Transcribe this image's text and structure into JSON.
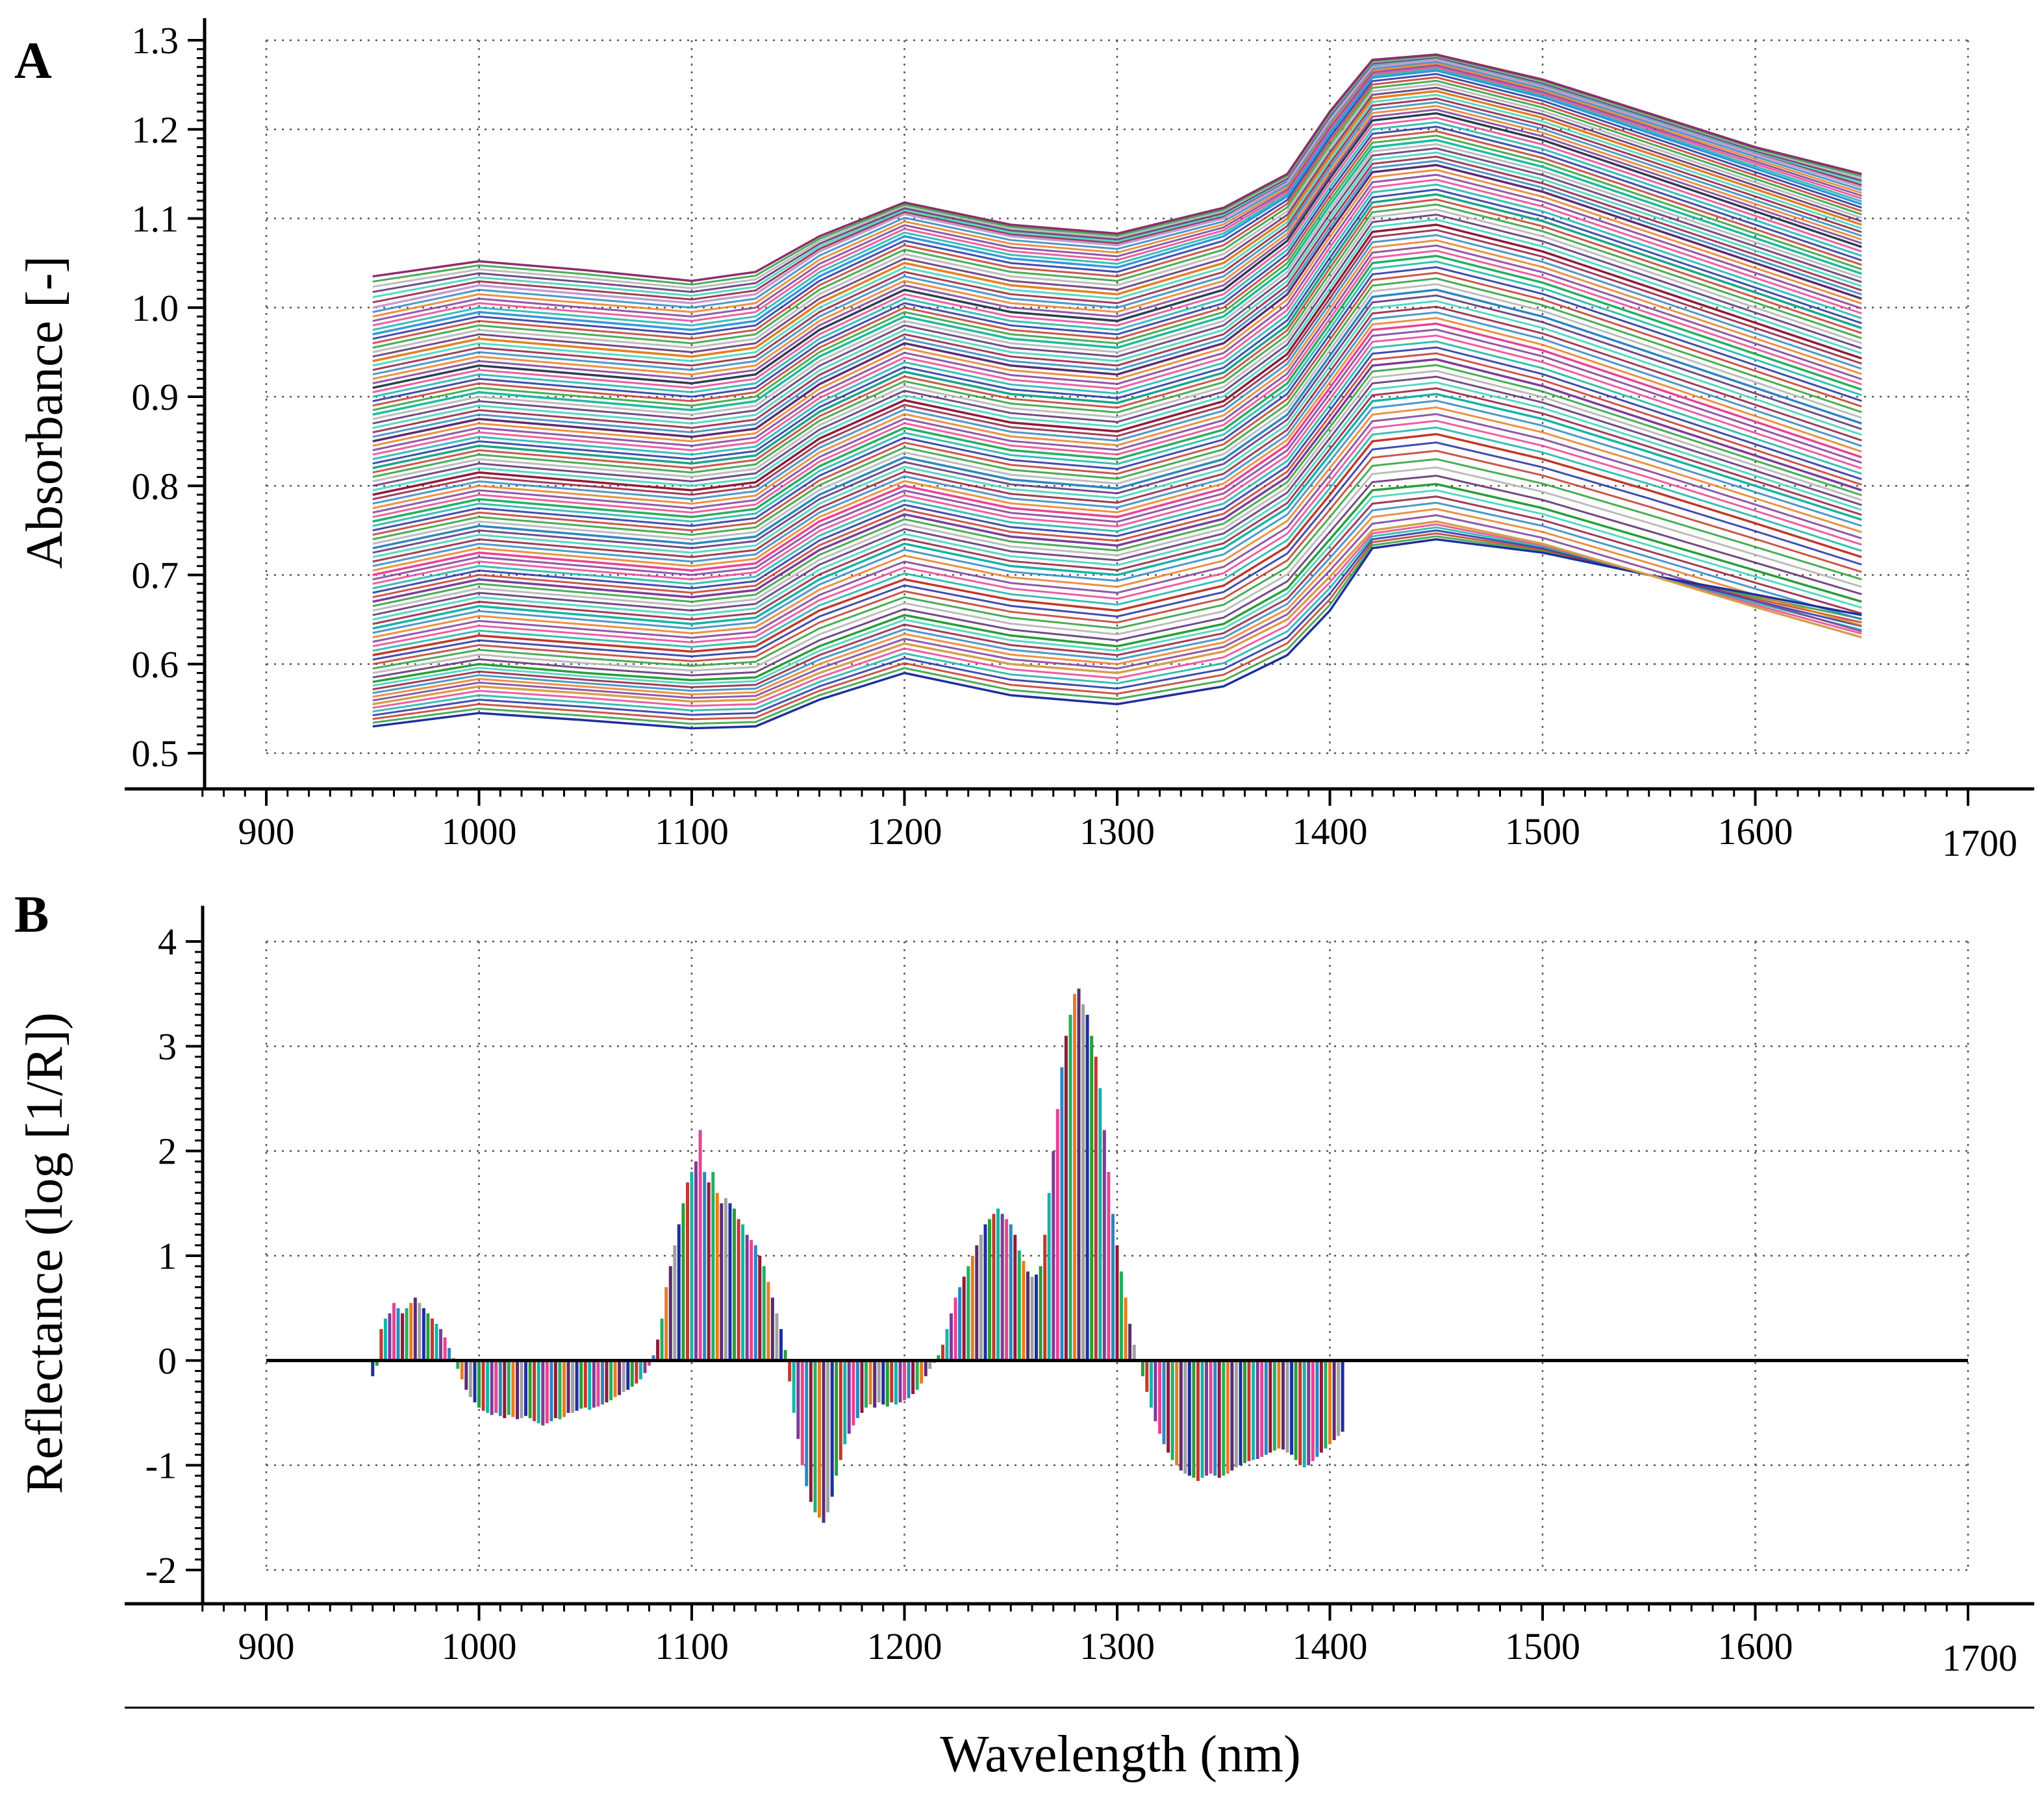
{
  "figure": {
    "xlabel": "Wavelength (nm)"
  },
  "chart_data": [
    {
      "panel": "A",
      "type": "line",
      "ylabel": "Absorbance [-]",
      "xlim": [
        900,
        1700
      ],
      "ylim": [
        0.5,
        1.3
      ],
      "xticks": [
        "900",
        "1000",
        "1100",
        "1200",
        "1300",
        "1400",
        "1500",
        "1600",
        "1700"
      ],
      "yticks": [
        "0.5",
        "0.6",
        "0.7",
        "0.8",
        "0.9",
        "1.0",
        "1.1",
        "1.2",
        "1.3"
      ],
      "grid": true,
      "x": [
        950,
        1000,
        1050,
        1100,
        1130,
        1160,
        1200,
        1250,
        1300,
        1350,
        1380,
        1400,
        1420,
        1450,
        1500,
        1550,
        1600,
        1650
      ],
      "series": [
        {
          "values": [
            0.53,
            0.545,
            0.537,
            0.528,
            0.53,
            0.56,
            0.59,
            0.565,
            0.555,
            0.575,
            0.61,
            0.66,
            0.73,
            0.74,
            0.725,
            0.7,
            0.678,
            0.655
          ]
        },
        {
          "values": [
            0.555,
            0.575,
            0.567,
            0.558,
            0.56,
            0.59,
            0.623,
            0.6,
            0.59,
            0.614,
            0.65,
            0.698,
            0.75,
            0.76,
            0.735,
            0.7,
            0.664,
            0.63
          ]
        },
        {
          "values": [
            0.58,
            0.6,
            0.59,
            0.582,
            0.585,
            0.62,
            0.655,
            0.632,
            0.62,
            0.645,
            0.685,
            0.74,
            0.795,
            0.802,
            0.775,
            0.74,
            0.705,
            0.67
          ]
        },
        {
          "values": [
            0.61,
            0.632,
            0.623,
            0.614,
            0.62,
            0.66,
            0.695,
            0.672,
            0.66,
            0.688,
            0.732,
            0.79,
            0.85,
            0.858,
            0.83,
            0.795,
            0.758,
            0.72
          ]
        },
        {
          "values": [
            0.64,
            0.665,
            0.655,
            0.645,
            0.652,
            0.695,
            0.735,
            0.71,
            0.7,
            0.73,
            0.775,
            0.835,
            0.895,
            0.903,
            0.875,
            0.838,
            0.8,
            0.762
          ]
        },
        {
          "values": [
            0.67,
            0.695,
            0.685,
            0.675,
            0.683,
            0.728,
            0.768,
            0.743,
            0.733,
            0.763,
            0.81,
            0.872,
            0.935,
            0.942,
            0.912,
            0.873,
            0.834,
            0.795
          ]
        },
        {
          "values": [
            0.7,
            0.725,
            0.715,
            0.705,
            0.713,
            0.76,
            0.8,
            0.775,
            0.765,
            0.797,
            0.846,
            0.91,
            0.975,
            0.982,
            0.952,
            0.912,
            0.872,
            0.832
          ]
        },
        {
          "values": [
            0.73,
            0.755,
            0.745,
            0.735,
            0.743,
            0.79,
            0.832,
            0.807,
            0.797,
            0.83,
            0.88,
            0.946,
            1.012,
            1.02,
            0.99,
            0.95,
            0.91,
            0.87
          ]
        },
        {
          "values": [
            0.76,
            0.785,
            0.775,
            0.765,
            0.774,
            0.822,
            0.865,
            0.84,
            0.83,
            0.863,
            0.915,
            0.982,
            1.05,
            1.058,
            1.028,
            0.988,
            0.948,
            0.908
          ]
        },
        {
          "values": [
            0.79,
            0.815,
            0.805,
            0.795,
            0.804,
            0.853,
            0.896,
            0.871,
            0.861,
            0.895,
            0.948,
            1.016,
            1.085,
            1.093,
            1.063,
            1.023,
            0.983,
            0.943
          ]
        },
        {
          "values": [
            0.82,
            0.845,
            0.835,
            0.825,
            0.834,
            0.883,
            0.928,
            0.903,
            0.893,
            0.927,
            0.98,
            1.05,
            1.118,
            1.127,
            1.097,
            1.057,
            1.017,
            0.977
          ]
        },
        {
          "values": [
            0.85,
            0.875,
            0.865,
            0.855,
            0.864,
            0.914,
            0.96,
            0.935,
            0.925,
            0.96,
            1.015,
            1.085,
            1.152,
            1.16,
            1.13,
            1.09,
            1.05,
            1.01
          ]
        },
        {
          "values": [
            0.88,
            0.905,
            0.895,
            0.885,
            0.895,
            0.945,
            0.99,
            0.965,
            0.955,
            0.99,
            1.045,
            1.115,
            1.18,
            1.188,
            1.158,
            1.118,
            1.078,
            1.038
          ]
        },
        {
          "values": [
            0.91,
            0.935,
            0.925,
            0.915,
            0.925,
            0.975,
            1.02,
            0.995,
            0.985,
            1.02,
            1.075,
            1.145,
            1.21,
            1.218,
            1.188,
            1.148,
            1.108,
            1.068
          ]
        },
        {
          "values": [
            0.94,
            0.965,
            0.955,
            0.945,
            0.955,
            1.005,
            1.05,
            1.025,
            1.015,
            1.05,
            1.1,
            1.17,
            1.235,
            1.243,
            1.213,
            1.173,
            1.133,
            1.093
          ]
        },
        {
          "values": [
            0.97,
            0.995,
            0.985,
            0.975,
            0.985,
            1.035,
            1.08,
            1.055,
            1.045,
            1.08,
            1.125,
            1.195,
            1.258,
            1.266,
            1.236,
            1.196,
            1.156,
            1.116
          ]
        },
        {
          "values": [
            1.0,
            1.025,
            1.015,
            1.005,
            1.015,
            1.063,
            1.105,
            1.08,
            1.07,
            1.1,
            1.14,
            1.21,
            1.27,
            1.278,
            1.248,
            1.21,
            1.172,
            1.135
          ]
        },
        {
          "values": [
            1.035,
            1.052,
            1.042,
            1.03,
            1.04,
            1.08,
            1.118,
            1.093,
            1.083,
            1.112,
            1.15,
            1.22,
            1.278,
            1.284,
            1.256,
            1.218,
            1.18,
            1.15
          ]
        }
      ],
      "colors": [
        "#1f2f9e",
        "#d4a04a",
        "#2a9d3a",
        "#c0392b",
        "#16b3a8",
        "#7d3c98",
        "#e84393",
        "#2e86c1",
        "#27ae60",
        "#8e1b3a",
        "#17a589",
        "#5b2c6f",
        "#1abc9c",
        "#2c3e50",
        "#e67e22",
        "#3498db",
        "#c39bd3",
        "#8e2d6e"
      ]
    },
    {
      "panel": "B",
      "type": "bar",
      "ylabel": "Reflectance (log [1/R])",
      "xlim": [
        900,
        1700
      ],
      "ylim": [
        -2,
        4
      ],
      "xticks": [
        "900",
        "1000",
        "1100",
        "1200",
        "1300",
        "1400",
        "1500",
        "1600",
        "1700"
      ],
      "yticks": [
        "-2",
        "-1",
        "0",
        "1",
        "2",
        "3",
        "4"
      ],
      "grid": true,
      "x_start": 950,
      "x_step": 2,
      "values": [
        -0.15,
        -0.05,
        0.3,
        0.4,
        0.45,
        0.55,
        0.5,
        0.45,
        0.5,
        0.55,
        0.6,
        0.55,
        0.5,
        0.45,
        0.4,
        0.35,
        0.3,
        0.22,
        0.12,
        0.02,
        -0.08,
        -0.18,
        -0.28,
        -0.35,
        -0.4,
        -0.45,
        -0.48,
        -0.5,
        -0.52,
        -0.5,
        -0.53,
        -0.55,
        -0.52,
        -0.54,
        -0.56,
        -0.55,
        -0.53,
        -0.55,
        -0.58,
        -0.6,
        -0.62,
        -0.6,
        -0.58,
        -0.55,
        -0.56,
        -0.54,
        -0.5,
        -0.5,
        -0.48,
        -0.46,
        -0.45,
        -0.47,
        -0.45,
        -0.44,
        -0.42,
        -0.4,
        -0.38,
        -0.35,
        -0.33,
        -0.3,
        -0.28,
        -0.25,
        -0.22,
        -0.18,
        -0.12,
        -0.05,
        0.05,
        0.2,
        0.4,
        0.7,
        0.9,
        1.1,
        1.3,
        1.5,
        1.7,
        1.8,
        1.9,
        2.2,
        1.8,
        1.7,
        1.8,
        1.6,
        1.5,
        1.55,
        1.5,
        1.45,
        1.35,
        1.3,
        1.2,
        1.15,
        1.1,
        1.0,
        0.9,
        0.75,
        0.6,
        0.45,
        0.3,
        0.1,
        -0.2,
        -0.5,
        -0.75,
        -1.0,
        -1.2,
        -1.35,
        -1.45,
        -1.5,
        -1.55,
        -1.45,
        -1.3,
        -1.1,
        -0.95,
        -0.8,
        -0.7,
        -0.62,
        -0.55,
        -0.5,
        -0.45,
        -0.42,
        -0.45,
        -0.4,
        -0.42,
        -0.44,
        -0.4,
        -0.42,
        -0.4,
        -0.38,
        -0.36,
        -0.32,
        -0.28,
        -0.22,
        -0.15,
        -0.08,
        -0.02,
        0.05,
        0.15,
        0.3,
        0.45,
        0.6,
        0.7,
        0.8,
        0.9,
        1.0,
        1.1,
        1.2,
        1.3,
        1.35,
        1.4,
        1.45,
        1.4,
        1.35,
        1.3,
        1.2,
        1.05,
        0.95,
        0.85,
        0.8,
        0.82,
        0.9,
        1.2,
        1.6,
        2.0,
        2.4,
        2.8,
        3.1,
        3.3,
        3.5,
        3.55,
        3.4,
        3.3,
        3.1,
        2.9,
        2.6,
        2.2,
        1.8,
        1.4,
        1.1,
        0.85,
        0.6,
        0.35,
        0.15,
        0.0,
        -0.15,
        -0.3,
        -0.45,
        -0.58,
        -0.7,
        -0.8,
        -0.88,
        -0.95,
        -1.0,
        -1.05,
        -1.08,
        -1.1,
        -1.12,
        -1.15,
        -1.12,
        -1.1,
        -1.08,
        -1.1,
        -1.12,
        -1.1,
        -1.08,
        -1.05,
        -1.02,
        -1.0,
        -0.98,
        -0.96,
        -0.95,
        -0.94,
        -0.92,
        -0.9,
        -0.88,
        -0.86,
        -0.84,
        -0.85,
        -0.88,
        -0.9,
        -0.95,
        -1.0,
        -1.02,
        -1.0,
        -0.96,
        -0.92,
        -0.88,
        -0.84,
        -0.8,
        -0.76,
        -0.72,
        -0.68
      ],
      "colors": [
        "#1f2f9e",
        "#2a9d3a",
        "#c0392b",
        "#16b3a8",
        "#7d3c98",
        "#e84393",
        "#2e86c1",
        "#8e1b3a",
        "#27ae60",
        "#e67e22",
        "#5b2c6f",
        "#a0a0a0"
      ]
    }
  ]
}
